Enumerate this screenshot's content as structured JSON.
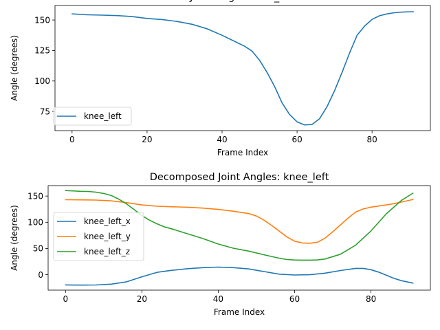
{
  "chart_data": [
    {
      "type": "line",
      "title": "Joint Angle: knee_left",
      "xlabel": "Frame Index",
      "ylabel": "Angle (degrees)",
      "xlim": [
        -4.55,
        95.55
      ],
      "ylim": [
        59.3,
        161.9
      ],
      "xticks": [
        0,
        20,
        40,
        60,
        80
      ],
      "xtick_labels": [
        "0",
        "20",
        "40",
        "60",
        "80"
      ],
      "yticks": [
        75,
        100,
        125,
        150
      ],
      "ytick_labels": [
        "75",
        "100",
        "125",
        "150"
      ],
      "grid": false,
      "legend": "lower-left",
      "series": [
        {
          "name": "knee_left",
          "color": "#1f77b4",
          "x": [
            0,
            4,
            8,
            12,
            16,
            20,
            24,
            28,
            32,
            36,
            40,
            44,
            46,
            48,
            50,
            52,
            54,
            56,
            58,
            60,
            62,
            64,
            66,
            68,
            70,
            72,
            74,
            76,
            78,
            80,
            82,
            84,
            86,
            88,
            91
          ],
          "values": [
            155,
            154.3,
            154,
            153.6,
            152.8,
            151.3,
            150.4,
            148.8,
            146.5,
            142.8,
            137.5,
            131.5,
            128.5,
            124.5,
            117,
            107,
            95.5,
            82,
            72.5,
            66.5,
            64,
            64.3,
            69,
            79,
            92,
            107,
            123,
            137.5,
            145,
            150.5,
            153.5,
            155,
            156,
            156.5,
            156.8
          ]
        }
      ]
    },
    {
      "type": "line",
      "title": "Decomposed Joint Angles: knee_left",
      "xlabel": "Frame Index",
      "ylabel": "Angle (degrees)",
      "xlim": [
        -4.55,
        95.55
      ],
      "ylim": [
        -29.4,
        169.9
      ],
      "xticks": [
        0,
        20,
        40,
        60,
        80
      ],
      "xtick_labels": [
        "0",
        "20",
        "40",
        "60",
        "80"
      ],
      "yticks": [
        0,
        50,
        100,
        150
      ],
      "ytick_labels": [
        "0",
        "50",
        "100",
        "150"
      ],
      "grid": false,
      "legend": "center-left",
      "series": [
        {
          "name": "knee_left_x",
          "color": "#1f77b4",
          "x": [
            0,
            4,
            8,
            12,
            16,
            20,
            24,
            28,
            32,
            36,
            40,
            44,
            48,
            52,
            56,
            60,
            64,
            68,
            72,
            76,
            78,
            80,
            82,
            84,
            86,
            88,
            91
          ],
          "values": [
            -19.5,
            -19.8,
            -19.6,
            -18,
            -13.5,
            -4,
            4.5,
            8.5,
            11.5,
            13.5,
            14.5,
            13.5,
            11,
            6,
            1,
            -0.5,
            0,
            3,
            8,
            12,
            12,
            9.5,
            5,
            -1,
            -7,
            -11.5,
            -16
          ]
        },
        {
          "name": "knee_left_y",
          "color": "#ff7f0e",
          "x": [
            0,
            4,
            8,
            12,
            16,
            20,
            24,
            28,
            32,
            36,
            40,
            44,
            48,
            50,
            52,
            54,
            56,
            58,
            60,
            62,
            64,
            66,
            68,
            70,
            72,
            74,
            76,
            78,
            80,
            82,
            84,
            86,
            88,
            91
          ],
          "values": [
            143,
            142.7,
            142.3,
            140.8,
            137.5,
            133,
            130.5,
            129.5,
            128.7,
            127,
            124.5,
            121,
            116.5,
            112,
            104,
            94,
            83,
            72,
            64,
            60.5,
            60,
            62,
            70,
            82,
            95,
            108,
            119.5,
            125.5,
            128.8,
            131,
            133,
            135.5,
            138.5,
            143.5
          ]
        },
        {
          "name": "knee_left_z",
          "color": "#2ca02c",
          "x": [
            0,
            2,
            4,
            6,
            8,
            10,
            12,
            14,
            16,
            18,
            20,
            22,
            24,
            26,
            28,
            32,
            36,
            40,
            44,
            48,
            52,
            56,
            58,
            60,
            62,
            64,
            66,
            68,
            72,
            76,
            80,
            84,
            88,
            91
          ],
          "values": [
            160.5,
            159.8,
            159,
            158.8,
            157.5,
            155,
            151,
            144,
            135,
            124,
            113,
            104,
            97,
            91,
            87,
            78,
            69,
            58.5,
            50.5,
            45,
            38,
            31.5,
            29,
            28,
            27.8,
            27.8,
            28.2,
            30,
            39,
            56.5,
            83.5,
            116,
            142,
            155.5
          ]
        }
      ]
    }
  ]
}
